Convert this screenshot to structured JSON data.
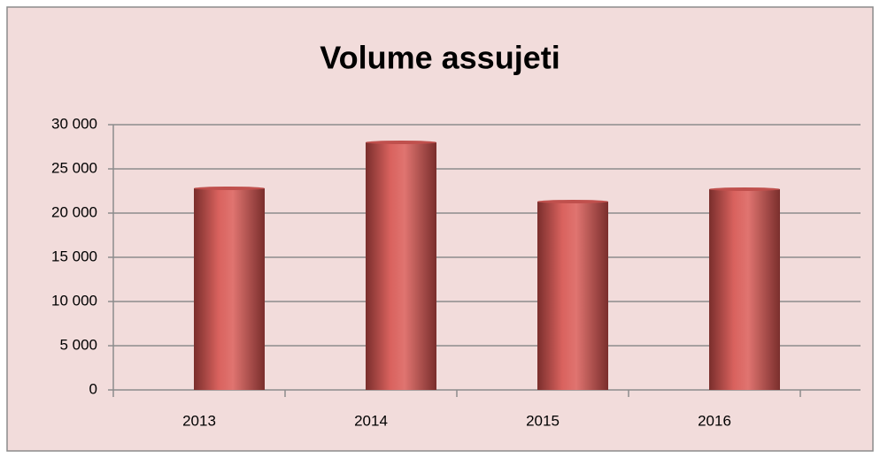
{
  "chart_data": {
    "type": "bar",
    "title": "Volume assujeti",
    "categories": [
      "2013",
      "2014",
      "2015",
      "2016"
    ],
    "values": [
      22800,
      28000,
      21300,
      22700
    ],
    "color": "#c0504d",
    "ylim": [
      0,
      30000
    ],
    "yticks": [
      0,
      {
        "value": 5000,
        "label": "5 000"
      },
      {
        "value": 10000,
        "label": "10 000"
      },
      {
        "value": 15000,
        "label": "15 000"
      },
      {
        "value": 20000,
        "label": "20 000"
      },
      {
        "value": 25000,
        "label": "25 000"
      },
      {
        "value": 30000,
        "label": "30 000"
      }
    ],
    "grid": true
  }
}
